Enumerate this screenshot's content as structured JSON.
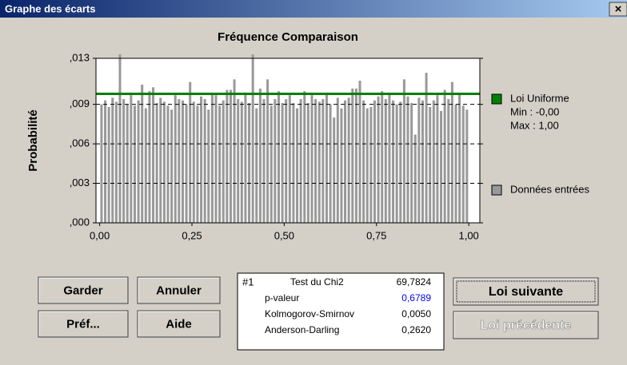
{
  "dialog": {
    "title": "Graphe des écarts",
    "close": "×",
    "buttons": {
      "keep": "Garder",
      "cancel": "Annuler",
      "prefs": "Préf...",
      "help": "Aide",
      "next": "Loi suivante",
      "previous": "Loi précédente"
    },
    "stats": {
      "id": "#1",
      "rows": [
        [
          "Test du Chi2",
          "69,7824"
        ],
        [
          "p-valeur",
          "0,6789"
        ],
        [
          "Kolmogorov-Smirnov",
          "0,0050"
        ],
        [
          "Anderson-Darling",
          "0,2620"
        ]
      ]
    }
  },
  "chart_data": {
    "type": "histogram",
    "title": "Fréquence Comparaison",
    "y_label": "Probabilité",
    "xlim": [
      -0.01,
      1.03
    ],
    "ylim": [
      0,
      0.0125
    ],
    "xticks": [
      {
        "value": 0,
        "label": "0,00"
      },
      {
        "value": 0.25,
        "label": "0,25"
      },
      {
        "value": 0.5,
        "label": "0,50"
      },
      {
        "value": 0.75,
        "label": "0,75"
      },
      {
        "value": 1,
        "label": "1,00"
      }
    ],
    "yticks": [
      {
        "value": 0,
        "label": ",000"
      },
      {
        "value": 0.003,
        "label": ",003"
      },
      {
        "value": 0.006,
        "label": ",006"
      },
      {
        "value": 0.009,
        "label": ",009"
      },
      {
        "value": 0.0125,
        "label": ",013"
      }
    ],
    "grid": true,
    "bins": [
      0,
      0.01,
      0.02,
      0.03,
      0.04,
      0.05,
      0.06,
      0.07,
      0.08,
      0.09,
      0.1,
      0.11,
      0.12,
      0.13,
      0.14,
      0.15,
      0.16,
      0.17,
      0.18,
      0.19,
      0.2,
      0.21,
      0.22,
      0.23,
      0.24,
      0.25,
      0.26,
      0.27,
      0.28,
      0.29,
      0.3,
      0.31,
      0.32,
      0.33,
      0.34,
      0.35,
      0.36,
      0.37,
      0.38,
      0.39,
      0.4,
      0.41,
      0.42,
      0.43,
      0.44,
      0.45,
      0.46,
      0.47,
      0.48,
      0.49,
      0.5,
      0.51,
      0.52,
      0.53,
      0.54,
      0.55,
      0.56,
      0.57,
      0.58,
      0.59,
      0.6,
      0.61,
      0.62,
      0.63,
      0.64,
      0.65,
      0.66,
      0.67,
      0.68,
      0.69,
      0.7,
      0.71,
      0.72,
      0.73,
      0.74,
      0.75,
      0.76,
      0.77,
      0.78,
      0.79,
      0.8,
      0.81,
      0.82,
      0.83,
      0.84,
      0.85,
      0.86,
      0.87,
      0.88,
      0.89,
      0.9,
      0.91,
      0.92,
      0.93,
      0.94,
      0.95,
      0.96,
      0.97,
      0.98,
      0.99,
      1
    ],
    "series": [
      {
        "name": "Données entrées",
        "color": "#999999",
        "values": [
          0.009,
          0.0093,
          0.0088,
          0.0095,
          0.0092,
          0.0128,
          0.0094,
          0.009,
          0.0097,
          0.0089,
          0.0093,
          0.0105,
          0.0087,
          0.01,
          0.0103,
          0.0091,
          0.0095,
          0.0092,
          0.0089,
          0.0086,
          0.0097,
          0.0094,
          0.0093,
          0.009,
          0.0107,
          0.0092,
          0.0089,
          0.0096,
          0.0094,
          0.0086,
          0.0098,
          0.0097,
          0.0089,
          0.0093,
          0.0101,
          0.0101,
          0.0109,
          0.0094,
          0.0092,
          0.0099,
          0.0091,
          0.0128,
          0.0087,
          0.0102,
          0.0094,
          0.0109,
          0.0089,
          0.0094,
          0.01,
          0.0091,
          0.0094,
          0.0097,
          0.0091,
          0.0087,
          0.0094,
          0.01,
          0.0091,
          0.0097,
          0.0094,
          0.0092,
          0.0094,
          0.0098,
          0.009,
          0.008,
          0.0095,
          0.0087,
          0.0093,
          0.0095,
          0.0102,
          0.0102,
          0.0108,
          0.0093,
          0.0087,
          0.0088,
          0.0093,
          0.0096,
          0.01,
          0.0094,
          0.0098,
          0.0093,
          0.009,
          0.0092,
          0.0109,
          0.0096,
          0.0091,
          0.0067,
          0.0095,
          0.0093,
          0.0114,
          0.0088,
          0.0093,
          0.0097,
          0.0085,
          0.0101,
          0.0094,
          0.0107,
          0.009,
          0.0098,
          0.0089,
          0.0086
        ]
      },
      {
        "name": "Loi Uniforme",
        "color": "#008000",
        "value": 0.0098,
        "min_label": "Min : -0,00",
        "max_label": "Max : 1,00"
      }
    ]
  }
}
